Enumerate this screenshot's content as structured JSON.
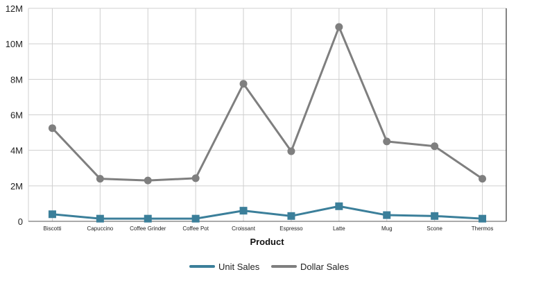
{
  "chart_data": {
    "type": "line",
    "xlabel": "Product",
    "ylabel": "",
    "categories": [
      "Biscotti",
      "Capuccino",
      "Coffee Grinder",
      "Coffee Pot",
      "Croissant",
      "Espresso",
      "Latte",
      "Mug",
      "Scone",
      "Thermos"
    ],
    "ylim": [
      0,
      12000000
    ],
    "y_ticks": [
      {
        "value": 0,
        "label": "0"
      },
      {
        "value": 2000000,
        "label": "2M"
      },
      {
        "value": 4000000,
        "label": "4M"
      },
      {
        "value": 6000000,
        "label": "6M"
      },
      {
        "value": 8000000,
        "label": "8M"
      },
      {
        "value": 10000000,
        "label": "10M"
      },
      {
        "value": 12000000,
        "label": "12M"
      }
    ],
    "grid": true,
    "legend_position": "bottom",
    "series": [
      {
        "name": "Unit Sales",
        "color": "#3b7f9a",
        "marker": "square",
        "values": [
          400000,
          150000,
          150000,
          150000,
          600000,
          300000,
          850000,
          350000,
          300000,
          150000
        ]
      },
      {
        "name": "Dollar Sales",
        "color": "#7f7f7f",
        "marker": "circle",
        "values": [
          5250000,
          2400000,
          2300000,
          2430000,
          7750000,
          3950000,
          10950000,
          4500000,
          4230000,
          2400000
        ]
      }
    ]
  }
}
